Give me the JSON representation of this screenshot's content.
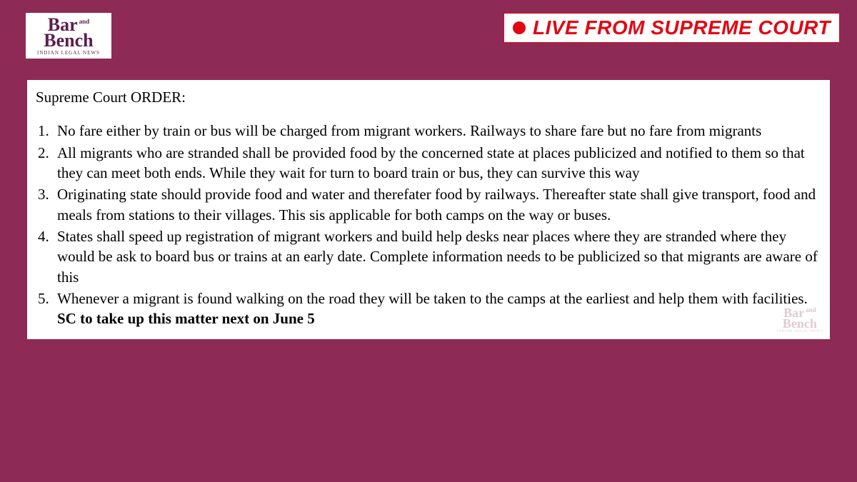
{
  "colors": {
    "background": "#8d2a55",
    "content_bg": "#ffffff",
    "logo_color": "#5c1f4e",
    "live_red": "#e30613",
    "text": "#000000"
  },
  "logo": {
    "line1": "Bar",
    "and": "and",
    "line2": "Bench",
    "tagline": "INDIAN LEGAL NEWS"
  },
  "live_banner": {
    "text": "LIVE FROM SUPREME COURT"
  },
  "order": {
    "title": "Supreme Court ORDER:",
    "items": [
      "No fare either by train or bus will be charged from migrant workers. Railways to share fare but no fare from migrants",
      "All migrants who are stranded shall be provided  food by the concerned state at places publicized and notified to them so that they can meet both ends. While they wait for turn to board train or bus, they can survive this way",
      "Originating state should provide food and water and therefater food by railways. Thereafter state shall give transport, food and meals from stations to their villages. This sis applicable for both camps on the way or buses.",
      "States shall speed up registration of migrant workers and build help desks near places where they are stranded where they would be ask to board bus or trains at an early date. Complete information needs to be publicized so that migrants are aware of this",
      "Whenever a migrant is found walking on the road they will be taken to the camps at the earliest and help them with facilities."
    ],
    "next_hearing": "SC to take up this matter next on June 5"
  },
  "typography": {
    "body_fontsize": 21,
    "body_fontfamily": "Georgia, serif",
    "live_fontsize": 28
  }
}
